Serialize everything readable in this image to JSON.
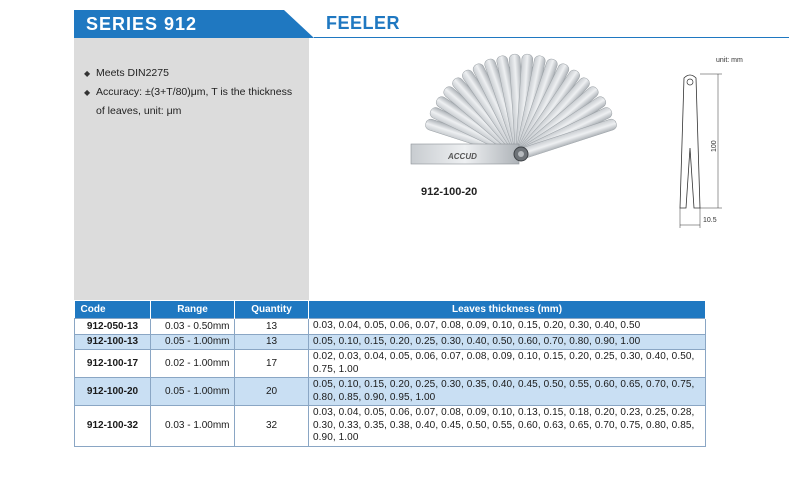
{
  "header": {
    "series": "SERIES 912",
    "product": "FEELER"
  },
  "features": [
    "Meets DIN2275",
    "Accuracy: ±(3+T/80)μm, T is the thickness",
    "of leaves, unit: μm"
  ],
  "image": {
    "brand_on_tool": "ACCUD",
    "model_label": "912-100-20"
  },
  "drawing": {
    "unit": "unit: mm",
    "length": "100",
    "width": "10.5"
  },
  "table": {
    "headers": [
      "Code",
      "Range",
      "Quantity",
      "Leaves thickness (mm)"
    ],
    "rows": [
      {
        "code": "912-050-13",
        "range": "0.03 - 0.50mm",
        "qty": "13",
        "leaves": "0.03, 0.04, 0.05, 0.06, 0.07, 0.08, 0.09, 0.10, 0.15, 0.20, 0.30, 0.40, 0.50"
      },
      {
        "code": "912-100-13",
        "range": "0.05 - 1.00mm",
        "qty": "13",
        "leaves": "0.05, 0.10, 0.15, 0.20, 0.25, 0.30, 0.40, 0.50, 0.60, 0.70, 0.80, 0.90, 1.00"
      },
      {
        "code": "912-100-17",
        "range": "0.02 - 1.00mm",
        "qty": "17",
        "leaves": "0.02, 0.03, 0.04, 0.05, 0.06, 0.07, 0.08, 0.09, 0.10, 0.15, 0.20, 0.25, 0.30, 0.40, 0.50, 0.75, 1.00"
      },
      {
        "code": "912-100-20",
        "range": "0.05 - 1.00mm",
        "qty": "20",
        "leaves": "0.05, 0.10, 0.15, 0.20, 0.25, 0.30, 0.35, 0.40, 0.45, 0.50, 0.55, 0.60, 0.65, 0.70, 0.75, 0.80, 0.85, 0.90, 0.95, 1.00"
      },
      {
        "code": "912-100-32",
        "range": "0.03 - 1.00mm",
        "qty": "32",
        "leaves": "0.03, 0.04, 0.05, 0.06, 0.07, 0.08, 0.09, 0.10, 0.13, 0.15, 0.18, 0.20, 0.23, 0.25, 0.28, 0.30, 0.33, 0.35, 0.38, 0.40, 0.45, 0.50, 0.55, 0.60, 0.63, 0.65, 0.70, 0.75, 0.80, 0.85, 0.90, 1.00"
      }
    ]
  },
  "colors": {
    "accent": "#1f78c1",
    "alt_row": "#c9dff3",
    "panel": "#dcdcdc"
  }
}
